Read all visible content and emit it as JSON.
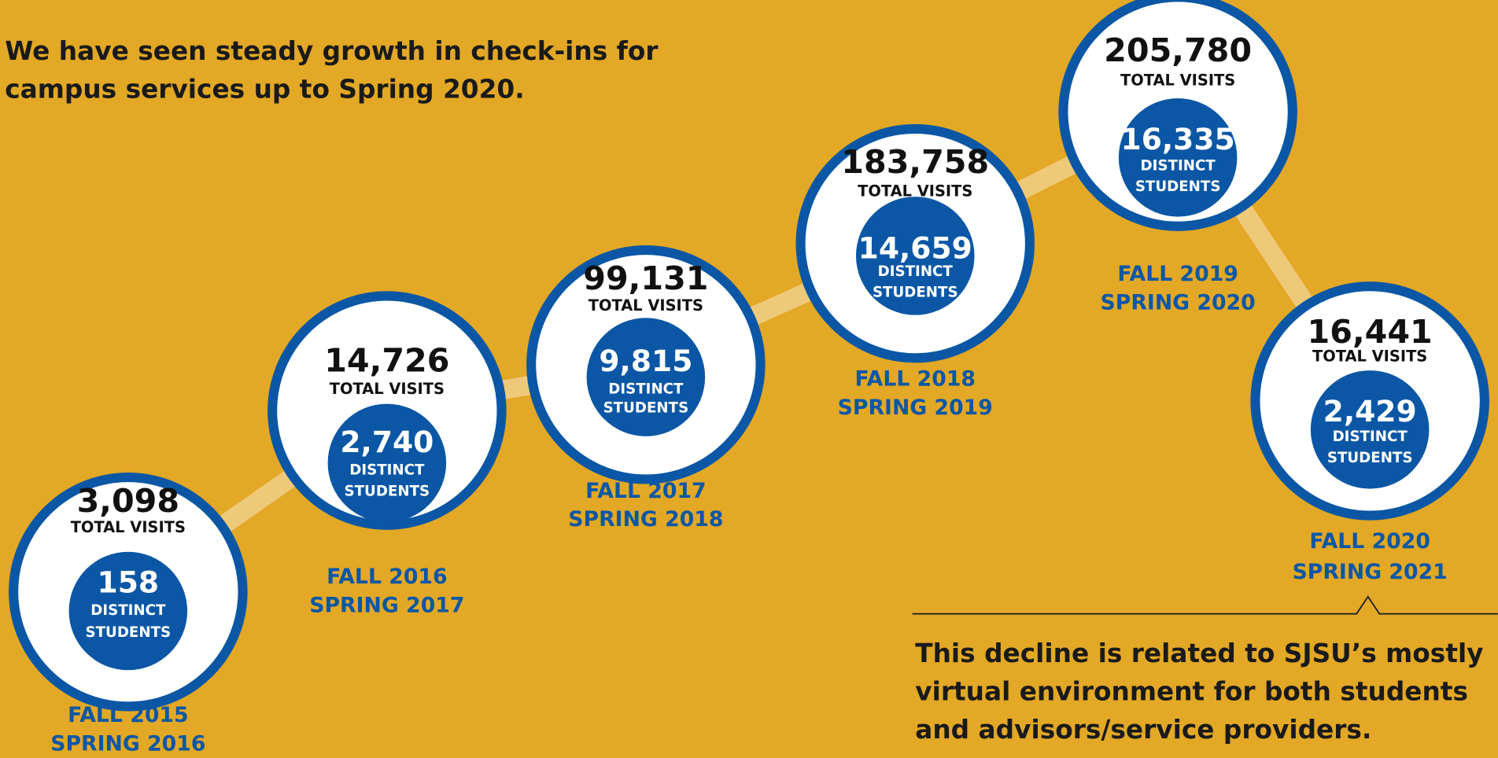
{
  "intro": [
    "We have seen steady growth in check-ins for",
    "campus services up to Spring 2020."
  ],
  "nodes": [
    {
      "total": "3,098",
      "total_label": "TOTAL VISITS",
      "distinct": "158",
      "distinct_label": [
        "DISTINCT",
        "STUDENTS"
      ],
      "period": [
        "FALL 2015",
        "SPRING 2016"
      ]
    },
    {
      "total": "14,726",
      "total_label": "TOTAL VISITS",
      "distinct": "2,740",
      "distinct_label": [
        "DISTINCT",
        "STUDENTS"
      ],
      "period": [
        "FALL 2016",
        "SPRING 2017"
      ]
    },
    {
      "total": "99,131",
      "total_label": "TOTAL VISITS",
      "distinct": "9,815",
      "distinct_label": [
        "DISTINCT",
        "STUDENTS"
      ],
      "period": [
        "FALL 2017",
        "SPRING 2018"
      ]
    },
    {
      "total": "183,758",
      "total_label": "TOTAL VISITS",
      "distinct": "14,659",
      "distinct_label": [
        "DISTINCT",
        "STUDENTS"
      ],
      "period": [
        "FALL 2018",
        "SPRING 2019"
      ]
    },
    {
      "total": "205,780",
      "total_label": "TOTAL VISITS",
      "distinct": "16,335",
      "distinct_label": [
        "DISTINCT",
        "STUDENTS"
      ],
      "period": [
        "FALL 2019",
        "SPRING 2020"
      ]
    },
    {
      "total": "16,441",
      "total_label": "TOTAL VISITS",
      "distinct": "2,429",
      "distinct_label": [
        "DISTINCT",
        "STUDENTS"
      ],
      "period": [
        "FALL 2020",
        "SPRING 2021"
      ]
    }
  ],
  "note": [
    "This decline is related to SJSU’s mostly",
    "virtual environment for both students",
    "and advisors/service providers."
  ]
}
